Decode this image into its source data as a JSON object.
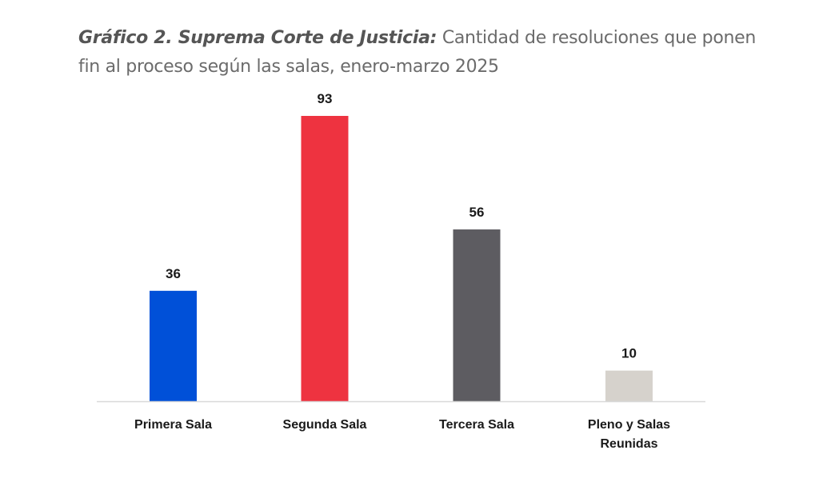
{
  "chart_data": {
    "type": "bar",
    "title_lead": "Gráfico 2. Suprema Corte de Justicia:",
    "title_rest": " Cantidad de resoluciones que ponen fin al proceso según las salas, enero-marzo 2025",
    "categories": [
      "Primera Sala",
      "Segunda Sala",
      "Tercera Sala",
      "Pleno y Salas Reunidas"
    ],
    "category_lines": [
      [
        "Primera Sala"
      ],
      [
        "Segunda Sala"
      ],
      [
        "Tercera Sala"
      ],
      [
        "Pleno y Salas",
        "Reunidas"
      ]
    ],
    "values": [
      36,
      93,
      56,
      10
    ],
    "colors": [
      "#0050d8",
      "#ee3340",
      "#5d5c61",
      "#d6d2cc"
    ],
    "xlabel": "",
    "ylabel": "",
    "ylim": [
      0,
      93
    ],
    "grid": false,
    "legend": "none",
    "data_labels": true
  }
}
